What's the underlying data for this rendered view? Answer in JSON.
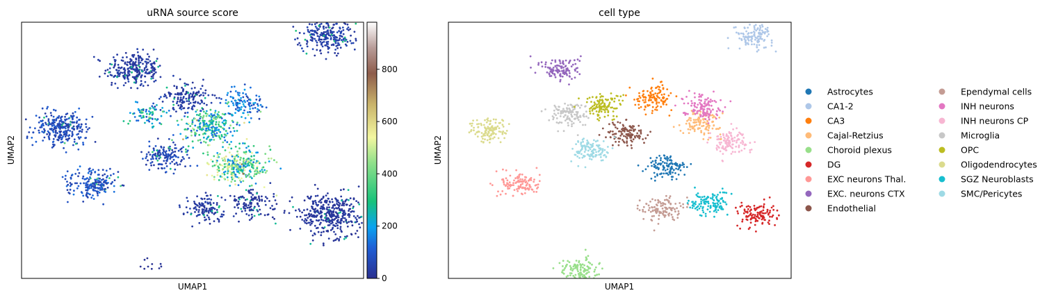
{
  "chart_data": [
    {
      "type": "scatter",
      "title": "uRNA source score",
      "xlabel": "UMAP1",
      "ylabel": "UMAP2",
      "grid": false,
      "colorbar": {
        "range": [
          0,
          980
        ],
        "ticks": [
          0,
          200,
          400,
          600,
          800
        ],
        "colormap": [
          "#2a2f8f",
          "#1f5fd6",
          "#0aa3f0",
          "#18c27a",
          "#8fe08a",
          "#f3f7a0",
          "#c9b36a",
          "#8e5c4b",
          "#b89c98",
          "#ffffff"
        ]
      },
      "clusters": [
        {
          "x": -2.5,
          "y": 2.6,
          "score": 30,
          "n": 260
        },
        {
          "x": 3.1,
          "y": 3.8,
          "score": 40,
          "n": 240
        },
        {
          "x": -4.6,
          "y": 0.5,
          "score": 70,
          "n": 280
        },
        {
          "x": -3.7,
          "y": -1.5,
          "score": 80,
          "n": 190
        },
        {
          "x": -1.0,
          "y": 1.6,
          "score": 30,
          "n": 150
        },
        {
          "x": 0.7,
          "y": 1.4,
          "score": 120,
          "n": 110
        },
        {
          "x": -0.3,
          "y": 0.6,
          "score": 250,
          "n": 260
        },
        {
          "x": -2.1,
          "y": 1.0,
          "score": 200,
          "n": 80
        },
        {
          "x": 0.6,
          "y": -0.9,
          "score": 320,
          "n": 320
        },
        {
          "x": 3.2,
          "y": -2.6,
          "score": 20,
          "n": 380
        },
        {
          "x": -0.4,
          "y": -2.4,
          "score": 30,
          "n": 120
        },
        {
          "x": 1.0,
          "y": -2.2,
          "score": 20,
          "n": 120
        },
        {
          "x": -1.6,
          "y": -0.5,
          "score": 60,
          "n": 150
        },
        {
          "x": -2.0,
          "y": -4.4,
          "score": 10,
          "n": 10
        }
      ]
    },
    {
      "type": "scatter",
      "title": "cell type",
      "xlabel": "UMAP1",
      "ylabel": "UMAP2",
      "grid": false,
      "legend_placement": "right",
      "series": [
        {
          "name": "Astrocytes",
          "color": "#1f77b4",
          "x": 0.6,
          "y": -0.9
        },
        {
          "name": "CA1-2",
          "color": "#aec7e8",
          "x": 3.1,
          "y": 3.8
        },
        {
          "name": "CA3",
          "color": "#ff7f0e",
          "x": 0.2,
          "y": 1.6
        },
        {
          "name": "Cajal-Retzius",
          "color": "#ffbb78",
          "x": 1.6,
          "y": 0.7
        },
        {
          "name": "Choroid plexus",
          "color": "#98df8a",
          "x": -2.0,
          "y": -4.6
        },
        {
          "name": "DG",
          "color": "#d62728",
          "x": 3.2,
          "y": -2.6
        },
        {
          "name": "EXC neurons Thal.",
          "color": "#ff9896",
          "x": -3.7,
          "y": -1.5
        },
        {
          "name": "EXC. neurons CTX",
          "color": "#9467bd",
          "x": -2.5,
          "y": 2.6
        },
        {
          "name": "Endothelial",
          "color": "#8c564b",
          "x": -0.6,
          "y": 0.3
        },
        {
          "name": "Ependymal cells",
          "color": "#c49c94",
          "x": 0.4,
          "y": -2.4
        },
        {
          "name": "INH neurons",
          "color": "#e377c2",
          "x": 1.6,
          "y": 1.3
        },
        {
          "name": "INH neurons CP",
          "color": "#f7b6d2",
          "x": 2.4,
          "y": 0.0
        },
        {
          "name": "Microglia",
          "color": "#c7c7c7",
          "x": -2.3,
          "y": 1.0
        },
        {
          "name": "OPC",
          "color": "#bcbd22",
          "x": -1.3,
          "y": 1.3
        },
        {
          "name": "Oligodendrocytes",
          "color": "#dbdb8d",
          "x": -4.6,
          "y": 0.4
        },
        {
          "name": "SGZ Neuroblasts",
          "color": "#17becf",
          "x": 1.8,
          "y": -2.2
        },
        {
          "name": "SMC/Pericytes",
          "color": "#9edae5",
          "x": -1.6,
          "y": -0.3
        }
      ]
    }
  ]
}
